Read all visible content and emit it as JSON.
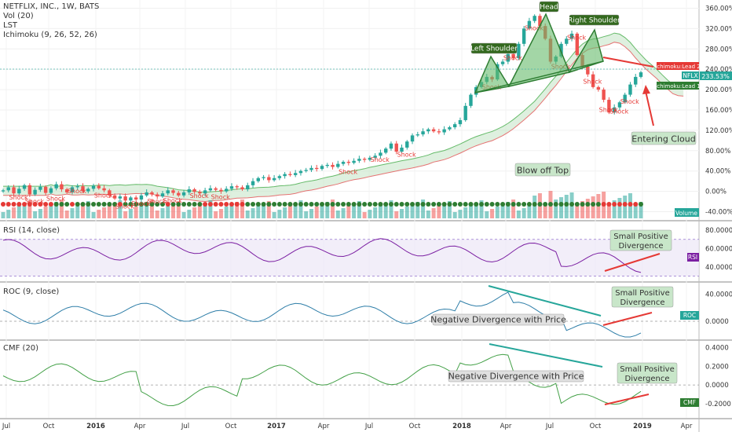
{
  "header": {
    "symbol_line": "NETFLIX, INC., 1W, BATS",
    "vol_line": "Vol (20)",
    "lst_line": "LST",
    "ichimoku_line": "Ichimoku (9, 26, 52, 26)"
  },
  "colors": {
    "up": "#26a69a",
    "down": "#ef5350",
    "cloud_green": "#c8e6c9",
    "cloud_red": "#ffcdd2",
    "rsi": "#7b1fa2",
    "roc": "#2e7ea8",
    "cmf": "#43a047",
    "annot_green": "#2e7d32",
    "annot_red": "#e53935",
    "dark_green_box": "#33691e"
  },
  "chart_data": [
    {
      "type": "candlestick",
      "name": "price",
      "y_unit": "percent",
      "ylim": [
        -50,
        370
      ],
      "y_ticks": [
        "360.00%",
        "320.00%",
        "280.00%",
        "240.00%",
        "200.00%",
        "160.00%",
        "120.00%",
        "80.00%",
        "40.00%",
        "0.00%",
        "-40.00%"
      ],
      "y_tick_values": [
        360,
        320,
        280,
        240,
        200,
        160,
        120,
        80,
        40,
        0,
        -40
      ],
      "x_ticks": [
        "Jul",
        "Oct",
        "2016",
        "Apr",
        "Jul",
        "Oct",
        "2017",
        "Apr",
        "Jul",
        "Oct",
        "2018",
        "Apr",
        "Jul",
        "Oct",
        "2019",
        "Apr"
      ],
      "close_series": [
        2,
        8,
        -4,
        5,
        12,
        -6,
        3,
        9,
        -3,
        6,
        14,
        4,
        -2,
        8,
        10,
        0,
        5,
        11,
        6,
        2,
        -8,
        -14,
        -10,
        -18,
        -12,
        -16,
        -8,
        -2,
        -6,
        -10,
        -4,
        2,
        -3,
        -8,
        -2,
        4,
        -1,
        -4,
        2,
        6,
        3,
        0,
        5,
        10,
        8,
        4,
        12,
        20,
        26,
        28,
        22,
        26,
        30,
        34,
        32,
        36,
        40,
        42,
        46,
        44,
        50,
        52,
        48,
        54,
        58,
        56,
        60,
        64,
        62,
        66,
        70,
        76,
        84,
        94,
        78,
        86,
        98,
        110,
        112,
        118,
        122,
        118,
        116,
        122,
        126,
        132,
        140,
        168,
        190,
        205,
        215,
        225,
        220,
        250,
        255,
        270,
        262,
        290,
        320,
        335,
        345,
        325,
        300,
        255,
        265,
        290,
        300,
        310,
        268,
        245,
        230,
        205,
        200,
        180,
        155,
        165,
        175,
        190,
        210,
        225,
        234
      ],
      "last_value_label": "233.53%",
      "ticker_label": "NFLX",
      "lead_labels": [
        "Ichimoku:Lead 2",
        "Ichimoku:Lead 1"
      ],
      "volume_label": "Volume",
      "annotations": {
        "head": "Head",
        "left_shoulder": "Left Shoulder",
        "right_shoulder": "Right Shoulder",
        "blow_off_top": "Blow off Top",
        "entering_cloud": "Entering Cloud",
        "shock_label": "Shock"
      }
    },
    {
      "type": "line",
      "name": "RSI (14, close)",
      "ylim": [
        28,
        86
      ],
      "y_ticks": [
        "80.0000",
        "60.0000",
        "40.0000"
      ],
      "y_tick_values": [
        80,
        60,
        40
      ],
      "badge": "RSI",
      "annotation": "Small Positive Divergence"
    },
    {
      "type": "line",
      "name": "ROC (9, close)",
      "ylim": [
        -22,
        52
      ],
      "y_ticks": [
        "40.0000",
        "0.0000"
      ],
      "y_tick_values": [
        40,
        0
      ],
      "badge": "ROC",
      "annotations": [
        "Negative Divergence with Price",
        "Small Positive Divergence"
      ]
    },
    {
      "type": "line",
      "name": "CMF (20)",
      "ylim": [
        -0.32,
        0.44
      ],
      "y_ticks": [
        "0.4000",
        "0.2000",
        "0.0000",
        "-0.2000"
      ],
      "y_tick_values": [
        0.4,
        0.2,
        0.0,
        -0.2
      ],
      "badge": "CMF",
      "annotations": [
        "Negative Divergence with Price",
        "Small Positive Divergence"
      ]
    }
  ]
}
